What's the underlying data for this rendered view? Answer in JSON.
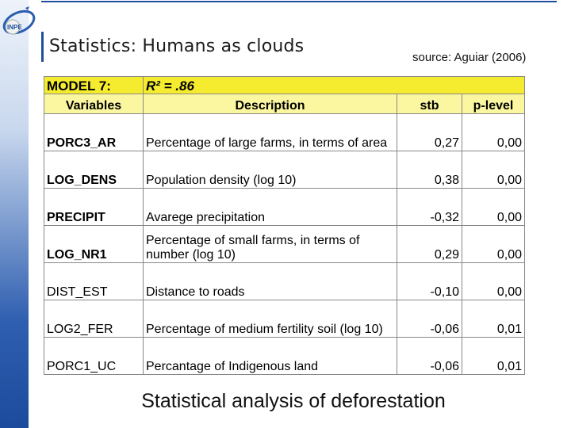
{
  "header": {
    "title": "Statistics: Humans as clouds",
    "source": "source: Aguiar (2006)",
    "logo_text": "INPE"
  },
  "table": {
    "model_label": "MODEL 7:",
    "r2_label": "R² = .86",
    "columns": [
      "Variables",
      "Description",
      "stb",
      "p-level"
    ],
    "rows": [
      {
        "variable": "PORC3_AR",
        "bold": true,
        "description": "Percentage of large farms, in terms of area",
        "stb": "0,27",
        "p": "0,00"
      },
      {
        "variable": "LOG_DENS",
        "bold": true,
        "description": "Population density (log 10)",
        "stb": "0,38",
        "p": "0,00"
      },
      {
        "variable": "PRECIPIT",
        "bold": true,
        "description": "Avarege precipitation",
        "stb": "-0,32",
        "p": "0,00"
      },
      {
        "variable": "LOG_NR1",
        "bold": true,
        "description": "Percentage of small farms, in terms of number (log 10)",
        "stb": "0,29",
        "p": "0,00"
      },
      {
        "variable": "DIST_EST",
        "bold": false,
        "description": "Distance to roads",
        "stb": "-0,10",
        "p": "0,00"
      },
      {
        "variable": "LOG2_FER",
        "bold": false,
        "description": "Percentage of medium fertility soil (log 10)",
        "stb": "-0,06",
        "p": "0,01"
      },
      {
        "variable": "PORC1_UC",
        "bold": false,
        "description": "Percantage of Indigenous land",
        "stb": "-0,06",
        "p": "0,01"
      }
    ]
  },
  "caption": "Statistical analysis of deforestation",
  "colors": {
    "accent": "#1f4e9c",
    "model_row": "#f5ec2f",
    "header_row": "#fbf6a0"
  }
}
